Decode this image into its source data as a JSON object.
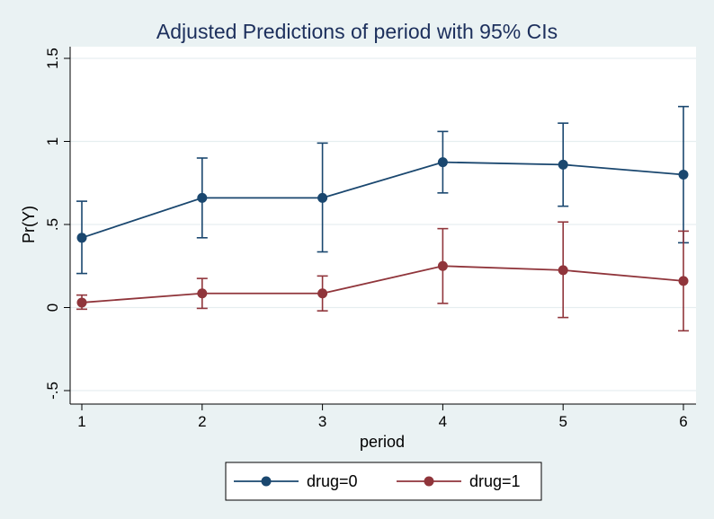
{
  "chart_data": {
    "type": "line",
    "title": "Adjusted Predictions of period with 95% CIs",
    "xlabel": "period",
    "ylabel": "Pr(Y)",
    "x": [
      1,
      2,
      3,
      4,
      5,
      6
    ],
    "x_tick_labels": [
      "1",
      "2",
      "3",
      "4",
      "5",
      "6"
    ],
    "xlim": [
      1,
      6
    ],
    "ylim": [
      -0.5,
      1.5
    ],
    "y_ticks": [
      -0.5,
      0,
      0.5,
      1,
      1.5
    ],
    "y_tick_labels": [
      "-.5",
      "0",
      ".5",
      "1",
      "1.5"
    ],
    "grid": true,
    "legend_position": "bottom",
    "series": [
      {
        "name": "drug=0",
        "color": "#1a476f",
        "values": [
          0.42,
          0.66,
          0.66,
          0.875,
          0.86,
          0.8
        ],
        "ci_low": [
          0.205,
          0.42,
          0.335,
          0.69,
          0.61,
          0.39
        ],
        "ci_high": [
          0.64,
          0.9,
          0.99,
          1.06,
          1.11,
          1.21
        ]
      },
      {
        "name": "drug=1",
        "color": "#90353b",
        "values": [
          0.03,
          0.085,
          0.085,
          0.25,
          0.225,
          0.16
        ],
        "ci_low": [
          -0.01,
          -0.005,
          -0.02,
          0.025,
          -0.06,
          -0.14
        ],
        "ci_high": [
          0.075,
          0.175,
          0.19,
          0.475,
          0.515,
          0.46
        ]
      }
    ]
  }
}
